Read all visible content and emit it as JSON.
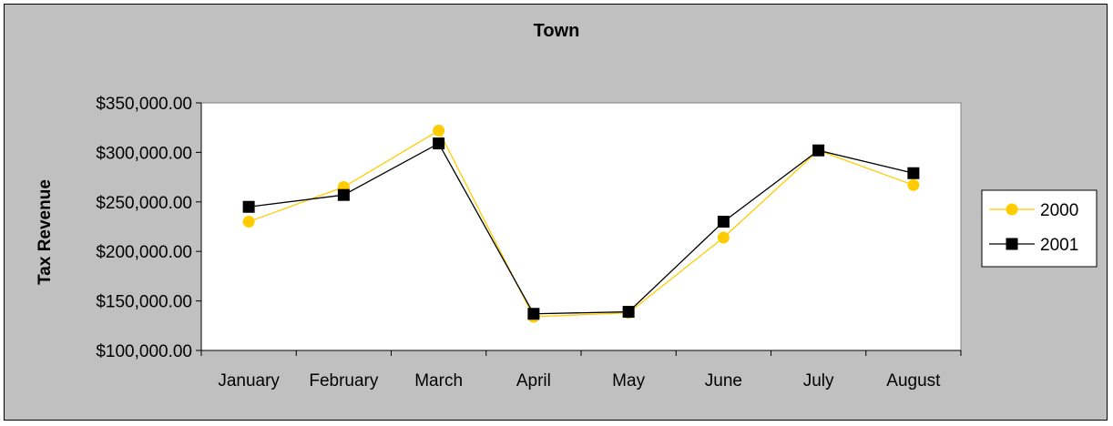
{
  "chart_data": {
    "type": "line",
    "title": "Town",
    "xlabel": "",
    "ylabel": "Tax Revenue",
    "categories": [
      "January",
      "February",
      "March",
      "April",
      "May",
      "June",
      "July",
      "August"
    ],
    "ylim": [
      100000,
      350000
    ],
    "yticks": [
      100000,
      150000,
      200000,
      250000,
      300000,
      350000
    ],
    "ytick_labels": [
      "$100,000.00",
      "$150,000.00",
      "$200,000.00",
      "$250,000.00",
      "$300,000.00",
      "$350,000.00"
    ],
    "grid": false,
    "legend_placement": "right",
    "plot_background": "#ffffff",
    "chart_background": "#c0c0c0",
    "series": [
      {
        "name": "2000",
        "color": "#ffcc00",
        "marker": "circle",
        "values": [
          230000,
          265000,
          322000,
          134000,
          138000,
          214000,
          302000,
          267000
        ]
      },
      {
        "name": "2001",
        "color": "#000000",
        "marker": "square",
        "values": [
          245000,
          257000,
          309000,
          137000,
          139000,
          230000,
          302000,
          279000
        ]
      }
    ]
  }
}
